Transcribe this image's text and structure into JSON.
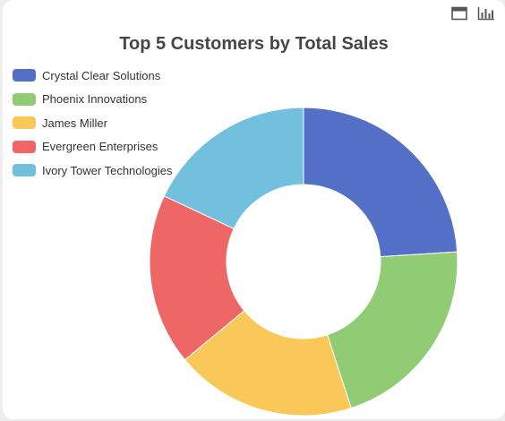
{
  "toolbar": {
    "data_view_icon": "data-view-icon",
    "bar_chart_icon": "bar-chart-icon"
  },
  "chart_data": {
    "type": "pie",
    "variant": "donut",
    "title": "Top 5 Customers by Total Sales",
    "legend_position": "top-left",
    "categories": [
      "Crystal Clear Solutions",
      "Phoenix Innovations",
      "James Miller",
      "Evergreen Enterprises",
      "Ivory Tower Technologies"
    ],
    "values": [
      24,
      21,
      19,
      18,
      18
    ],
    "colors": [
      "#5470c6",
      "#91cc75",
      "#fac858",
      "#ee6666",
      "#73c0de"
    ]
  }
}
